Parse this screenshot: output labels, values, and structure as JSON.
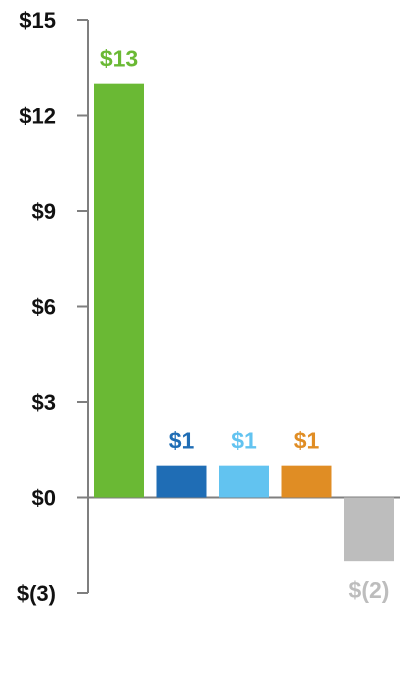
{
  "chart_data": {
    "type": "bar",
    "title": "",
    "xlabel": "",
    "ylabel": "",
    "ylim": [
      -3,
      15
    ],
    "yticks": [
      15,
      12,
      9,
      6,
      3,
      0,
      -3
    ],
    "ytick_labels": [
      "$15",
      "$12",
      "$9",
      "$6",
      "$3",
      "$0",
      "$(3)"
    ],
    "grid": false,
    "categories": [
      "",
      "",
      "",
      "",
      ""
    ],
    "values": [
      13,
      1,
      1,
      1,
      -2
    ],
    "data_labels": [
      "$13",
      "$1",
      "$1",
      "$1",
      "$(2)"
    ],
    "colors": [
      "#6ab934",
      "#1f6db5",
      "#62c3f0",
      "#e08d24",
      "#bdbdbd"
    ],
    "axis_color": "#7f7f7f"
  }
}
